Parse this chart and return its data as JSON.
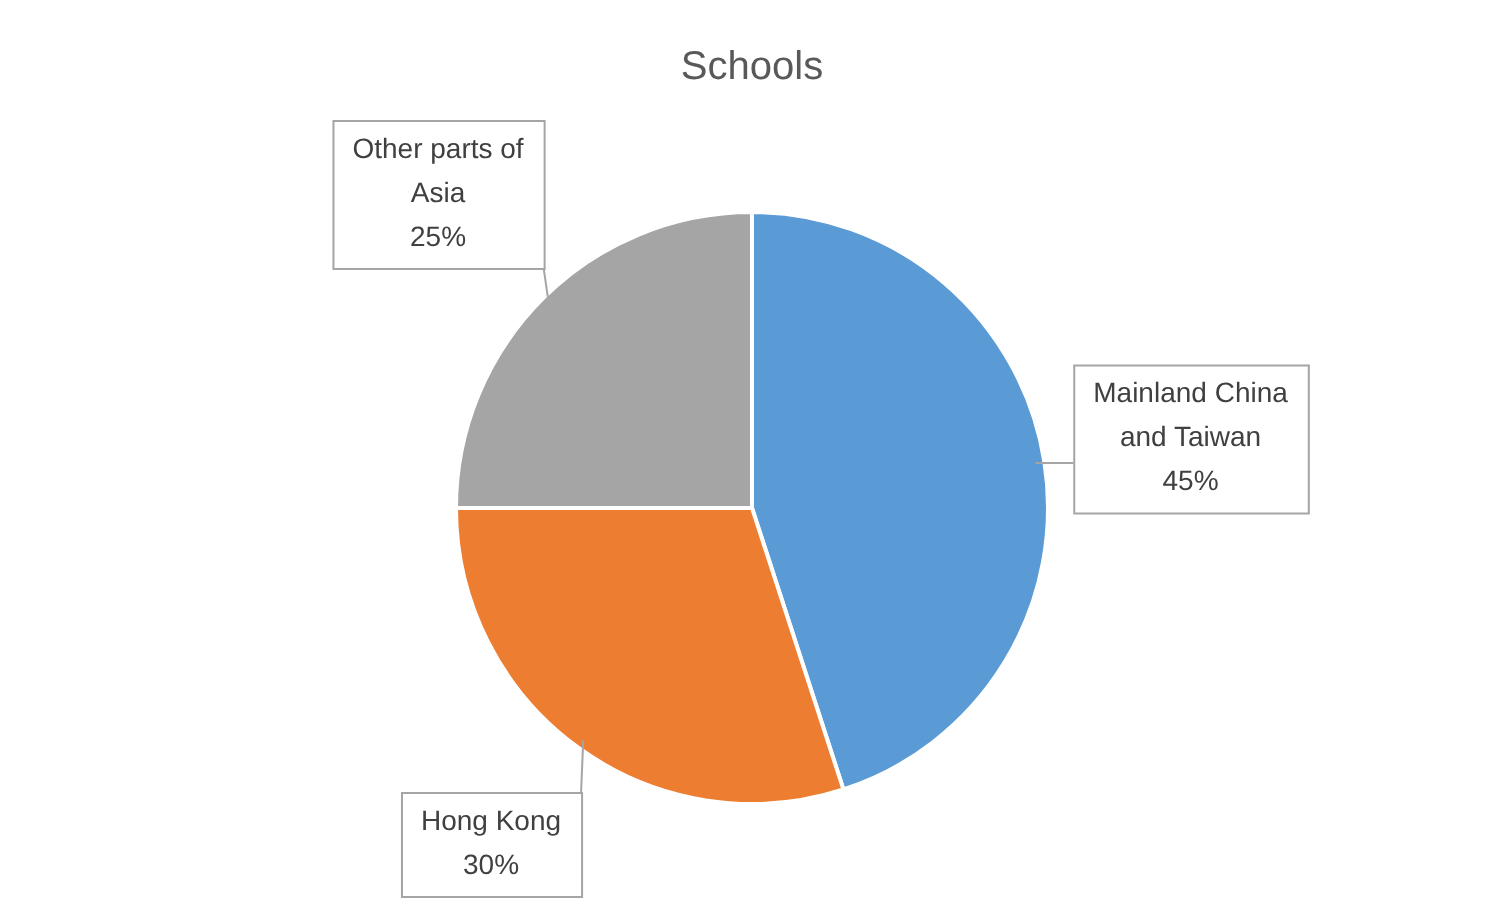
{
  "chart_data": {
    "type": "pie",
    "title": "Schools",
    "categories": [
      "Mainland China and Taiwan",
      "Hong Kong",
      "Other parts of Asia"
    ],
    "values": [
      45,
      30,
      25
    ],
    "colors": [
      "#5b9bd5",
      "#ed7d31",
      "#a5a5a5"
    ],
    "value_labels": [
      "45%",
      "30%",
      "25%"
    ]
  }
}
